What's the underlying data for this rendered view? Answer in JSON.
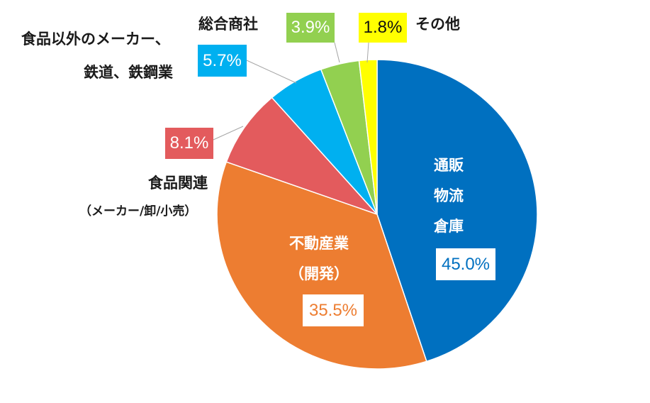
{
  "chart_data": {
    "type": "pie",
    "start": "top",
    "direction": "clockwise",
    "slices": [
      {
        "label_lines": [
          "通販",
          "物流",
          "倉庫"
        ],
        "value": 45.0,
        "value_label": "45.0%",
        "color": "#0070C0"
      },
      {
        "label_lines": [
          "不動産業",
          "（開発）"
        ],
        "value": 35.5,
        "value_label": "35.5%",
        "color": "#ED7D31"
      },
      {
        "label_lines": [
          "食品関連",
          "（メーカー/卸/小売）"
        ],
        "value": 8.1,
        "value_label": "8.1%",
        "color": "#E35B5D"
      },
      {
        "label_lines": [
          "食品以外のメーカー、",
          "鉄道、鉄鋼業"
        ],
        "value": 5.7,
        "value_label": "5.7%",
        "color": "#00B0F0"
      },
      {
        "label_lines": [
          "総合商社"
        ],
        "value": 3.9,
        "value_label": "3.9%",
        "color": "#92D050"
      },
      {
        "label_lines": [
          "その他"
        ],
        "value": 1.8,
        "value_label": "1.8%",
        "color": "#FFFF00"
      }
    ]
  }
}
